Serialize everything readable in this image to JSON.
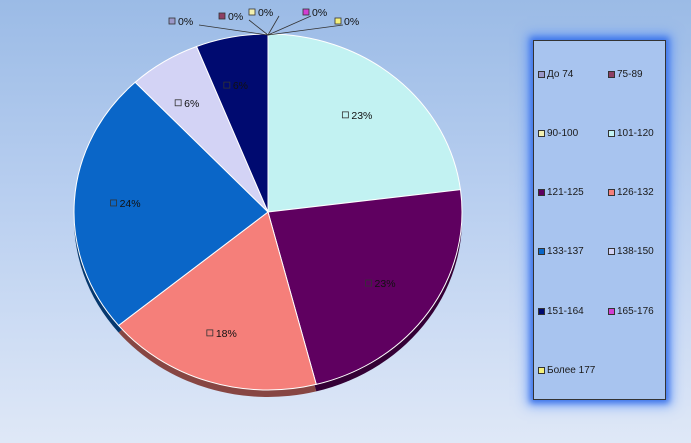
{
  "chart_data": {
    "type": "pie",
    "legend_position": "right",
    "slices": [
      {
        "label": "До 74",
        "value": 0,
        "data_label": "0%",
        "color": "#9a97c8"
      },
      {
        "label": "75-89",
        "value": 0,
        "data_label": "0%",
        "color": "#8e3f63"
      },
      {
        "label": "90-100",
        "value": 0,
        "data_label": "0%",
        "color": "#f2f0b0"
      },
      {
        "label": "101-120",
        "value": 23,
        "data_label": "23%",
        "color": "#c2f2f2"
      },
      {
        "label": "121-125",
        "value": 23,
        "data_label": "23%",
        "color": "#5f0060"
      },
      {
        "label": "126-132",
        "value": 18,
        "data_label": "18%",
        "color": "#f57f7a"
      },
      {
        "label": "133-137",
        "value": 24,
        "data_label": "24%",
        "color": "#0a66c8"
      },
      {
        "label": "138-150",
        "value": 6,
        "data_label": "6%",
        "color": "#d3d3f5"
      },
      {
        "label": "151-164",
        "value": 6,
        "data_label": "6%",
        "color": "#000a70"
      },
      {
        "label": "165-176",
        "value": 0,
        "data_label": "0%",
        "color": "#d23fd2"
      },
      {
        "label": "Более 177",
        "value": 0,
        "data_label": "0%",
        "color": "#f5f07a"
      }
    ]
  }
}
